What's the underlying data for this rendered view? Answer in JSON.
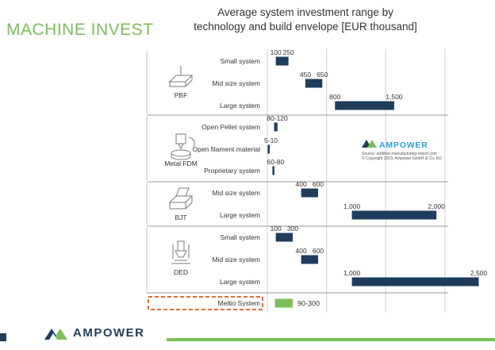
{
  "slide": {
    "title": "MACHINE INVEST",
    "footer_brand": "AMPOWER"
  },
  "chart_data": {
    "type": "bar",
    "orientation": "horizontal-range",
    "title_lines": [
      "Average system investment range by",
      "technology and build envelope [EUR thousand]"
    ],
    "xlim": [
      0,
      2800
    ],
    "grid": true,
    "groups": [
      {
        "name": "PBF",
        "icon": "pbf-machine-icon",
        "rows": [
          {
            "label": "Small system",
            "min": 100,
            "max": 250,
            "min_label": "100",
            "max_label": "250"
          },
          {
            "label": "Mid size system",
            "min": 450,
            "max": 650,
            "min_label": "450",
            "max_label": "650"
          },
          {
            "label": "Large system",
            "min": 800,
            "max": 1500,
            "min_label": "800",
            "max_label": "1,500"
          }
        ]
      },
      {
        "name": "Metal FDM",
        "icon": "fdm-extruder-icon",
        "rows": [
          {
            "label": "Open Pellet system",
            "min": 80,
            "max": 120,
            "range_label": "80-120"
          },
          {
            "label": "Open filament material",
            "min": 5,
            "max": 10,
            "range_label": "5-10"
          },
          {
            "label": "Proprietary system",
            "min": 60,
            "max": 80,
            "range_label": "60-80"
          }
        ]
      },
      {
        "name": "BJT",
        "icon": "bjt-machine-icon",
        "rows": [
          {
            "label": "Mid size system",
            "min": 400,
            "max": 600,
            "min_label": "400",
            "max_label": "600"
          },
          {
            "label": "Large system",
            "min": 1000,
            "max": 2000,
            "min_label": "1,000",
            "max_label": "2,000"
          }
        ]
      },
      {
        "name": "DED",
        "icon": "ded-nozzle-icon",
        "rows": [
          {
            "label": "Small system",
            "min": 100,
            "max": 300,
            "min_label": "100",
            "max_label": "300"
          },
          {
            "label": "Mid size system",
            "min": 400,
            "max": 600,
            "min_label": "400",
            "max_label": "600"
          },
          {
            "label": "Large system",
            "min": 1000,
            "max": 2500,
            "min_label": "1,000",
            "max_label": "2,500"
          }
        ]
      },
      {
        "name": "",
        "highlight": true,
        "rows": [
          {
            "label": "Meltio System",
            "min": 90,
            "max": 300,
            "range_label": "90-300",
            "highlight": true
          }
        ]
      }
    ],
    "source_box": {
      "brand": "AMPOWER",
      "line1": "Source: additive-manufacturing-report.com",
      "line2": "© Copyright 2019, Ampower GmbH & Co. KG"
    },
    "colors": {
      "bar": "#1f3d5b",
      "highlight_bar": "#7bbf5a",
      "highlight_box": "#e36c2f",
      "grid": "#d0d0d0",
      "source_brand": "#2aa3d8"
    }
  }
}
